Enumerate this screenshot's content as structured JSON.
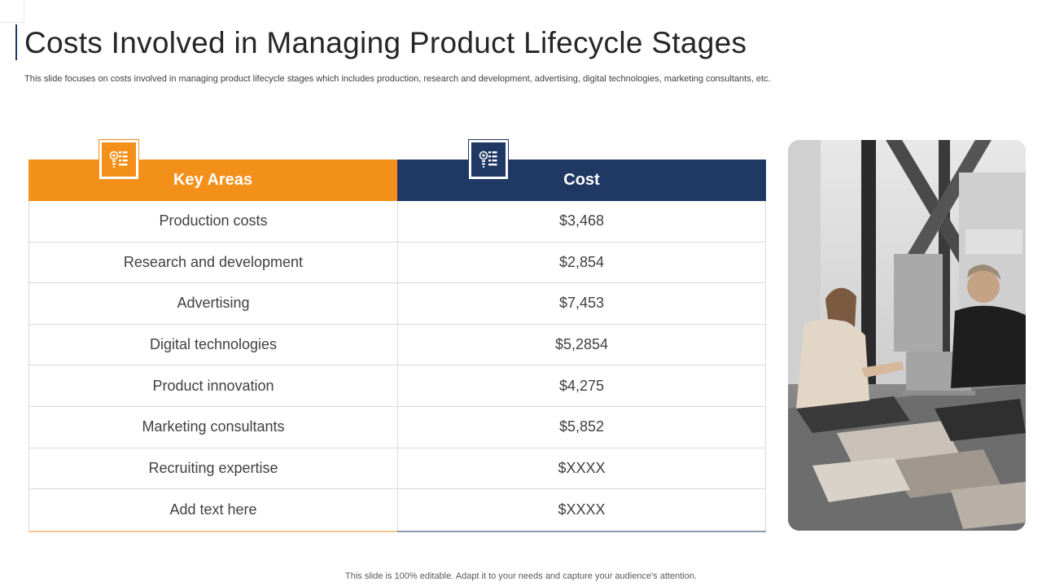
{
  "slide": {
    "title": "Costs Involved in Managing Product Lifecycle Stages",
    "subtitle": "This slide focuses on costs involved in managing product lifecycle stages which includes production, research and development, advertising, digital technologies, marketing consultants, etc.",
    "footer": "This slide is 100% editable. Adapt it to your needs and capture your audience's attention."
  },
  "table": {
    "headers": {
      "key_areas": "Key Areas",
      "cost": "Cost"
    },
    "rows": [
      {
        "area": "Production costs",
        "cost": "$3,468"
      },
      {
        "area": "Research and development",
        "cost": "$2,854"
      },
      {
        "area": "Advertising",
        "cost": "$7,453"
      },
      {
        "area": "Digital technologies",
        "cost": "$5,2854"
      },
      {
        "area": "Product innovation",
        "cost": "$4,275"
      },
      {
        "area": "Marketing consultants",
        "cost": "$5,852"
      },
      {
        "area": "Recruiting expertise",
        "cost": "$XXXX"
      },
      {
        "area": "Add text here",
        "cost": "$XXXX"
      }
    ]
  },
  "icons": {
    "key_areas": "checklist-icon",
    "cost": "checklist-icon"
  },
  "colors": {
    "accent_orange": "#f39019",
    "accent_navy": "#1f3864"
  }
}
